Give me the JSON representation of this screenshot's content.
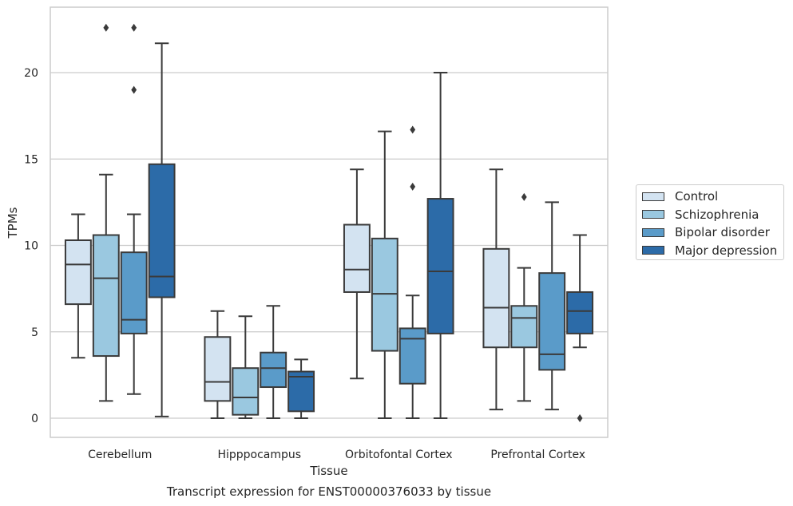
{
  "chart_data": {
    "type": "box",
    "title": "Transcript expression for ENST00000376033 by tissue",
    "xlabel": "Tissue",
    "ylabel": "TPMs",
    "ylim": [
      -1.1,
      23.8
    ],
    "yticks": [
      0,
      5,
      10,
      15,
      20
    ],
    "grid": "horizontal",
    "legend_position": "right",
    "categories": [
      "Cerebellum",
      "Hipppocampus",
      "Orbitofontal Cortex",
      "Prefrontal Cortex"
    ],
    "series": [
      {
        "name": "Control",
        "color": "#d3e3f1",
        "boxes": [
          {
            "whislo": 3.5,
            "q1": 6.6,
            "med": 8.9,
            "q3": 10.3,
            "whishi": 11.8,
            "fliers": []
          },
          {
            "whislo": 0.0,
            "q1": 1.0,
            "med": 2.1,
            "q3": 4.7,
            "whishi": 6.2,
            "fliers": []
          },
          {
            "whislo": 2.3,
            "q1": 7.3,
            "med": 8.6,
            "q3": 11.2,
            "whishi": 14.4,
            "fliers": []
          },
          {
            "whislo": 0.5,
            "q1": 4.1,
            "med": 6.4,
            "q3": 9.8,
            "whishi": 14.4,
            "fliers": []
          }
        ]
      },
      {
        "name": "Schizophrenia",
        "color": "#9ac8e0",
        "boxes": [
          {
            "whislo": 1.0,
            "q1": 3.6,
            "med": 8.1,
            "q3": 10.6,
            "whishi": 14.1,
            "fliers": [
              22.6
            ]
          },
          {
            "whislo": 0.0,
            "q1": 0.2,
            "med": 1.2,
            "q3": 2.9,
            "whishi": 5.9,
            "fliers": []
          },
          {
            "whislo": 0.0,
            "q1": 3.9,
            "med": 7.2,
            "q3": 10.4,
            "whishi": 16.6,
            "fliers": []
          },
          {
            "whislo": 1.0,
            "q1": 4.1,
            "med": 5.8,
            "q3": 6.5,
            "whishi": 8.7,
            "fliers": [
              12.8
            ]
          }
        ]
      },
      {
        "name": "Bipolar disorder",
        "color": "#5a9bc9",
        "boxes": [
          {
            "whislo": 1.4,
            "q1": 4.9,
            "med": 5.7,
            "q3": 9.6,
            "whishi": 11.8,
            "fliers": [
              22.6,
              19.0
            ]
          },
          {
            "whislo": 0.0,
            "q1": 1.8,
            "med": 2.9,
            "q3": 3.8,
            "whishi": 6.5,
            "fliers": []
          },
          {
            "whislo": 0.0,
            "q1": 2.0,
            "med": 4.6,
            "q3": 5.2,
            "whishi": 7.1,
            "fliers": [
              16.7,
              13.4
            ]
          },
          {
            "whislo": 0.5,
            "q1": 2.8,
            "med": 3.7,
            "q3": 8.4,
            "whishi": 12.5,
            "fliers": []
          }
        ]
      },
      {
        "name": "Major depression",
        "color": "#2c6ba8",
        "boxes": [
          {
            "whislo": 0.1,
            "q1": 7.0,
            "med": 8.2,
            "q3": 14.7,
            "whishi": 21.7,
            "fliers": []
          },
          {
            "whislo": 0.0,
            "q1": 0.4,
            "med": 2.4,
            "q3": 2.7,
            "whishi": 3.4,
            "fliers": []
          },
          {
            "whislo": 0.0,
            "q1": 4.9,
            "med": 8.5,
            "q3": 12.7,
            "whishi": 20.0,
            "fliers": []
          },
          {
            "whislo": 4.1,
            "q1": 4.9,
            "med": 6.2,
            "q3": 7.3,
            "whishi": 10.6,
            "fliers": [
              0.0
            ]
          }
        ]
      }
    ]
  }
}
